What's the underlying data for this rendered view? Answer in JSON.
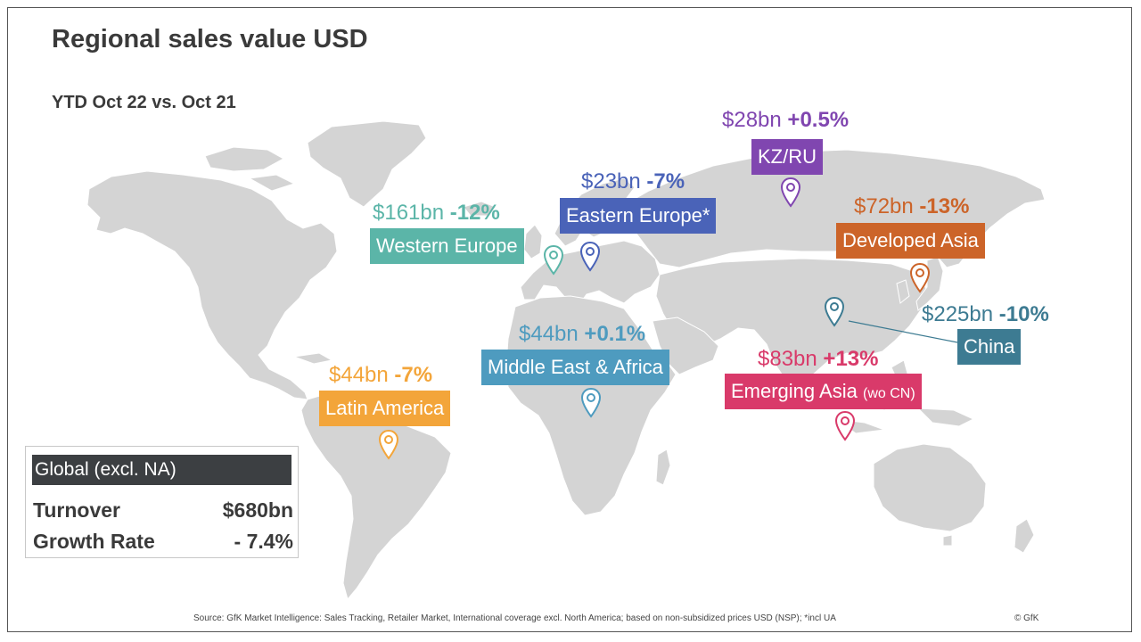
{
  "title": "Regional sales value USD",
  "subtitle": "YTD Oct 22 vs. Oct 21",
  "colors": {
    "land": "#d4d4d4",
    "western_europe": "#5bb5a8",
    "eastern_europe": "#4a63b8",
    "kz_ru": "#8046b0",
    "developed_asia": "#cc6429",
    "china": "#3d7b92",
    "middle_east_africa": "#4e9bbf",
    "latin_america": "#f3a53a",
    "emerging_asia": "#d93a6a",
    "legend_header": "#3c3f42"
  },
  "regions": [
    {
      "key": "we",
      "value": "$161bn",
      "growth": "-12%",
      "label": "Western Europe",
      "label_note": "",
      "color": "#5bb5a8",
      "icon": "map-pin-icon"
    },
    {
      "key": "ee",
      "value": "$23bn",
      "growth": "-7%",
      "label": "Eastern Europe*",
      "label_note": "",
      "color": "#4a63b8",
      "icon": "map-pin-icon"
    },
    {
      "key": "kz",
      "value": "$28bn",
      "growth": "+0.5%",
      "label": "KZ/RU",
      "label_note": "",
      "color": "#8046b0",
      "icon": "map-pin-icon"
    },
    {
      "key": "da",
      "value": "$72bn",
      "growth": "-13%",
      "label": "Developed Asia",
      "label_note": "",
      "color": "#cc6429",
      "icon": "map-pin-icon"
    },
    {
      "key": "cn",
      "value": "$225bn",
      "growth": "-10%",
      "label": "China",
      "label_note": "",
      "color": "#3d7b92",
      "icon": "map-pin-icon"
    },
    {
      "key": "me",
      "value": "$44bn",
      "growth": "+0.1%",
      "label": "Middle East & Africa",
      "label_note": "",
      "color": "#4e9bbf",
      "icon": "map-pin-icon"
    },
    {
      "key": "la",
      "value": "$44bn",
      "growth": "-7%",
      "label": "Latin America",
      "label_note": "",
      "color": "#f3a53a",
      "icon": "map-pin-icon"
    },
    {
      "key": "ea",
      "value": "$83bn",
      "growth": "+13%",
      "label": "Emerging Asia",
      "label_note": "(wo CN)",
      "color": "#d93a6a",
      "icon": "map-pin-icon"
    }
  ],
  "legend": {
    "header": "Global (excl. NA)",
    "rows": [
      {
        "label": "Turnover",
        "value": "$680bn"
      },
      {
        "label": "Growth Rate",
        "value": "- 7.4%"
      }
    ]
  },
  "source": "Source: GfK Market Intelligence: Sales Tracking, Retailer Market, International coverage excl. North America; based on non-subsidized prices USD (NSP); *incl UA",
  "copyright": "© GfK"
}
